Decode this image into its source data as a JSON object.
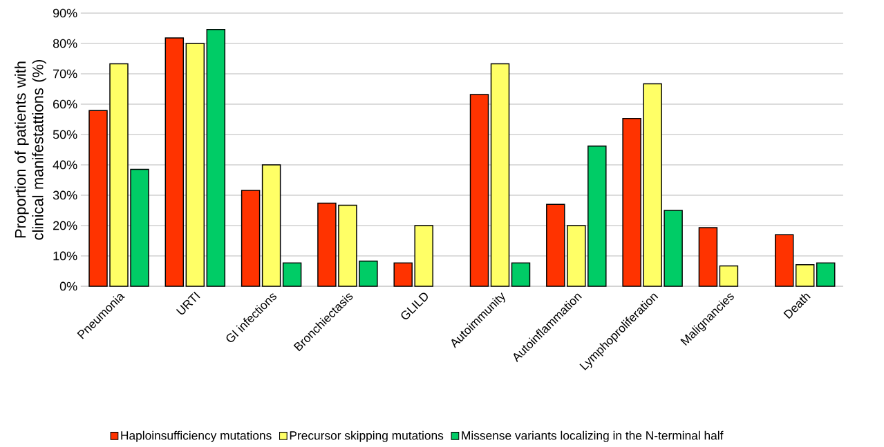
{
  "chart_data": {
    "type": "bar",
    "ylabel": "Proportion of patients with clinical manifestattions (%)",
    "categories": [
      "Pneumonia",
      "URTI",
      "GI infections",
      "Bronchiectasis",
      "GLILD",
      "Autoimmunity",
      "Autoinflammation",
      "Lymphoproliferation",
      "Malignancies",
      "Death"
    ],
    "series": [
      {
        "name": "Haploinsufficiency mutations",
        "color": "#ff3300",
        "values": [
          57.9,
          81.8,
          31.6,
          27.4,
          7.7,
          63.2,
          27.0,
          55.3,
          19.3,
          17.0
        ]
      },
      {
        "name": "Precursor skipping mutations",
        "color": "#ffff66",
        "values": [
          73.3,
          80.0,
          40.0,
          26.7,
          20.0,
          73.3,
          20.0,
          66.7,
          6.7,
          7.1
        ]
      },
      {
        "name": "Missense variants localizing in the N-terminal half",
        "color": "#00cc66",
        "values": [
          38.5,
          84.6,
          7.7,
          8.3,
          null,
          7.7,
          46.2,
          25.0,
          null,
          7.7
        ]
      }
    ],
    "ylim": [
      0,
      90
    ],
    "yticks": [
      {
        "value": 0,
        "label": "0%"
      },
      {
        "value": 10,
        "label": "10%"
      },
      {
        "value": 20,
        "label": "20%"
      },
      {
        "value": 30,
        "label": "30%"
      },
      {
        "value": 40,
        "label": "40%"
      },
      {
        "value": 50,
        "label": "50%"
      },
      {
        "value": 60,
        "label": "60%"
      },
      {
        "value": 70,
        "label": "70%"
      },
      {
        "value": 80,
        "label": "80%"
      },
      {
        "value": 90,
        "label": "90%"
      }
    ],
    "grid": "y",
    "legend": "bottom"
  }
}
